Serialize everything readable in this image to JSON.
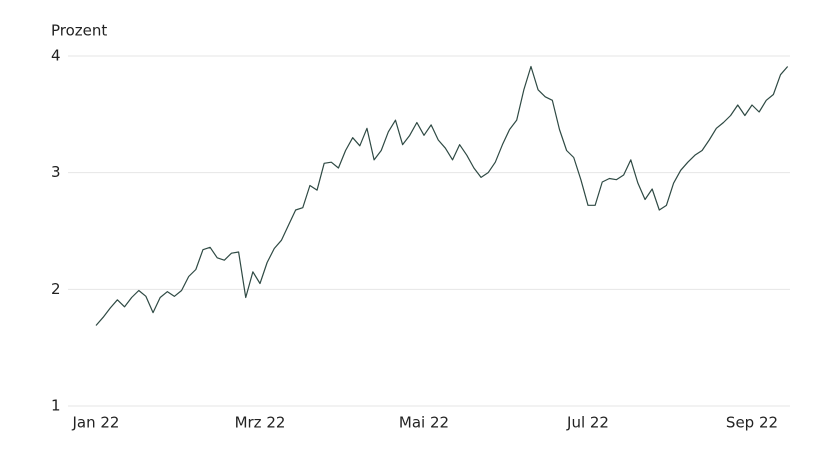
{
  "chart_data": {
    "type": "line",
    "y_label": "Prozent",
    "categories": [
      "Jan 22",
      null,
      null,
      null,
      null,
      null,
      null,
      null,
      null,
      null,
      null,
      null,
      null,
      null,
      null,
      null,
      null,
      null,
      null,
      null,
      null,
      null,
      null,
      "Mrz 22",
      null,
      null,
      null,
      null,
      null,
      null,
      null,
      null,
      null,
      null,
      null,
      null,
      null,
      null,
      null,
      null,
      null,
      null,
      null,
      null,
      null,
      null,
      "Mai 22",
      null,
      null,
      null,
      null,
      null,
      null,
      null,
      null,
      null,
      null,
      null,
      null,
      null,
      null,
      null,
      null,
      null,
      null,
      null,
      null,
      null,
      null,
      "Jul 22",
      null,
      null,
      null,
      null,
      null,
      null,
      null,
      null,
      null,
      null,
      null,
      null,
      null,
      null,
      null,
      null,
      null,
      null,
      null,
      null,
      null,
      null,
      "Sep 22",
      null,
      null,
      null,
      null,
      null
    ],
    "values": [
      1.69,
      1.76,
      1.84,
      1.91,
      1.85,
      1.93,
      1.99,
      1.94,
      1.8,
      1.93,
      1.98,
      1.94,
      1.99,
      2.11,
      2.17,
      2.34,
      2.36,
      2.27,
      2.25,
      2.31,
      2.32,
      1.93,
      2.15,
      2.05,
      2.23,
      2.35,
      2.42,
      2.55,
      2.68,
      2.7,
      2.89,
      2.85,
      3.08,
      3.09,
      3.04,
      3.19,
      3.3,
      3.23,
      3.38,
      3.11,
      3.19,
      3.35,
      3.45,
      3.24,
      3.32,
      3.43,
      3.32,
      3.41,
      3.28,
      3.21,
      3.11,
      3.24,
      3.15,
      3.04,
      2.96,
      3.0,
      3.09,
      3.24,
      3.37,
      3.45,
      3.71,
      3.91,
      3.71,
      3.65,
      3.62,
      3.37,
      3.19,
      3.13,
      2.94,
      2.72,
      2.72,
      2.92,
      2.95,
      2.94,
      2.98,
      3.11,
      2.91,
      2.77,
      2.86,
      2.68,
      2.72,
      2.91,
      3.02,
      3.09,
      3.15,
      3.19,
      3.28,
      3.38,
      3.43,
      3.49,
      3.58,
      3.49,
      3.58,
      3.52,
      3.62,
      3.67,
      3.84,
      3.91
    ],
    "color": "#2f4a44",
    "ylim": [
      1,
      4
    ],
    "yticks": [
      1,
      2,
      3,
      4
    ],
    "grid": true
  }
}
